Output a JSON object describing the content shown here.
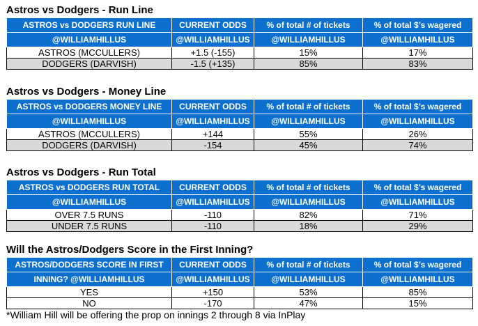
{
  "sections": [
    {
      "title": "Astros vs Dodgers - Run Line",
      "headers_row1": [
        "ASTROS vs DODGERS RUN LINE",
        "CURRENT ODDS",
        "% of total # of tickets",
        "% of total $’s wagered"
      ],
      "headers_row2": [
        "@WILLIAMHILLUS",
        "@WILLIAMHILLUS",
        "@WILLIAMHILLUS",
        "@WILLIAMHILLUS"
      ],
      "rows": [
        [
          "ASTROS (MCCULLERS)",
          "+1.5 (-155)",
          "15%",
          "17%"
        ],
        [
          "DODGERS (DARVISH)",
          "-1.5 (+135)",
          "85%",
          "83%"
        ]
      ]
    },
    {
      "title": "Astros vs Dodgers - Money Line",
      "headers_row1": [
        "ASTROS vs DODGERS MONEY LINE",
        "CURRENT ODDS",
        "% of total # of tickets",
        "% of total $’s wagered"
      ],
      "headers_row2": [
        "@WILLIAMHILLUS",
        "@WILLIAMHILLUS",
        "@WILLIAMHILLUS",
        "@WILLIAMHILLUS"
      ],
      "rows": [
        [
          "ASTROS (MCCULLERS)",
          "+144",
          "55%",
          "26%"
        ],
        [
          "DODGERS (DARVISH)",
          "-154",
          "45%",
          "74%"
        ]
      ]
    },
    {
      "title": "Astros vs Dodgers - Run Total",
      "headers_row1": [
        "ASTROS vs DODGERS RUN TOTAL",
        "CURRENT ODDS",
        "% of total # of tickets",
        "% of total $’s wagered"
      ],
      "headers_row2": [
        "@WILLIAMHILLUS",
        "@WILLIAMHILLUS",
        "@WILLIAMHILLUS",
        "@WILLIAMHILLUS"
      ],
      "rows": [
        [
          "OVER 7.5 RUNS",
          "-110",
          "82%",
          "71%"
        ],
        [
          "UNDER 7.5 RUNS",
          "-110",
          "18%",
          "29%"
        ]
      ]
    },
    {
      "title": "Will the Astros/Dodgers Score in the First Inning?",
      "headers_row1": [
        "ASTROS/DODGERS SCORE IN FIRST",
        "CURRENT ODDS",
        "% of total # of tickets",
        "% of total $’s wagered"
      ],
      "headers_row2": [
        "INNING? @WILLIAMHILLUS",
        "@WILLIAMHILLUS",
        "@WILLIAMHILLUS",
        "@WILLIAMHILLUS"
      ],
      "rows": [
        [
          "YES",
          "+150",
          "53%",
          "85%"
        ],
        [
          "NO",
          "-170",
          "47%",
          "15%"
        ]
      ]
    }
  ],
  "footnote": "*William Hill will be offering the prop on innings 2 through 8 via InPlay",
  "colors": {
    "header_bg": "#0d6fce",
    "header_text": "#ffffff",
    "alt_row_bg": "#d9d9d9"
  }
}
